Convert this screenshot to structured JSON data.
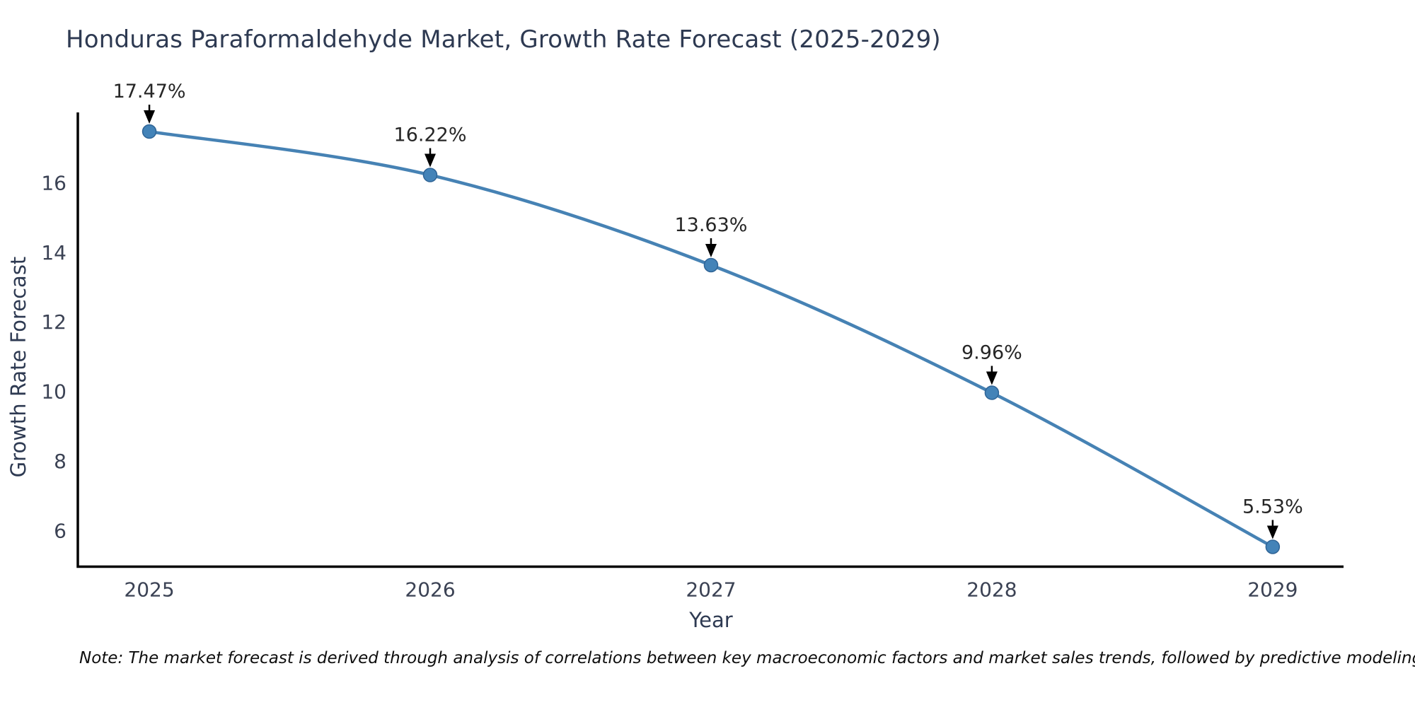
{
  "header": {
    "title": "Honduras Paraformaldehyde Market, Growth Rate Forecast (2025-2029)"
  },
  "chart_data": {
    "type": "line",
    "title": "Honduras Paraformaldehyde Market, Growth Rate Forecast (2025-2029)",
    "xlabel": "Year",
    "ylabel": "Growth Rate Forecast",
    "x": [
      2025,
      2026,
      2027,
      2028,
      2029
    ],
    "series": [
      {
        "name": "Growth Rate Forecast",
        "values": [
          17.47,
          16.22,
          13.63,
          9.96,
          5.53
        ]
      }
    ],
    "point_labels": [
      "17.47%",
      "16.22%",
      "13.63%",
      "9.96%",
      "5.53%"
    ],
    "x_tick_labels": [
      "2025",
      "2026",
      "2027",
      "2028",
      "2029"
    ],
    "y_ticks": [
      6,
      8,
      10,
      12,
      14,
      16
    ],
    "xlim": [
      2024.7454,
      2029.2523
    ],
    "ylim": [
      4.96,
      18.02
    ],
    "grid": false,
    "legend_position": "none",
    "colors": {
      "line": "#4682b4",
      "marker_fill": "#4383b8",
      "marker_edge": "#2f6496",
      "axis_spine": "#000000",
      "tick_text": "#3b4254",
      "axis_label_text": "#2e3a52",
      "annotation_text": "#262626",
      "annotation_arrow": "#000000",
      "background": "#ffffff"
    }
  },
  "footer": {
    "note": "Note: The market forecast is derived through analysis of correlations between key macroeconomic factors and market sales trends, followed by predictive modeling to project future sales"
  }
}
